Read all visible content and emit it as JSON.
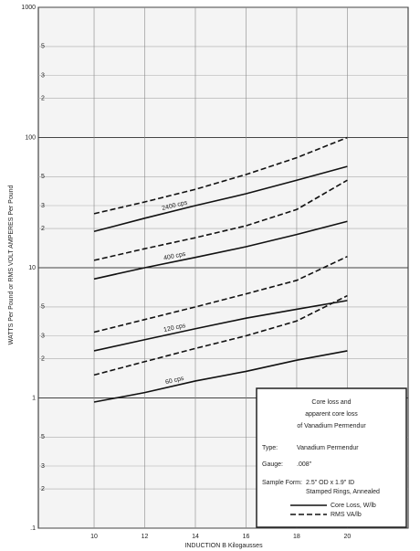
{
  "chart_data": {
    "type": "line",
    "log_y": true,
    "grid": true,
    "y_label": "WATTS Per Pound or RMS VOLT AMPERES Per Pound",
    "x_label": "INDUCTION  B  Kilogausses",
    "x": [
      10,
      12,
      14,
      16,
      18,
      20
    ],
    "xlim": [
      7.8,
      22.4
    ],
    "xticks": [
      10,
      12,
      14,
      16,
      18,
      20
    ],
    "ylim": [
      0.1,
      1000
    ],
    "yticks": [
      {
        "value": 0.1,
        "label": ".1"
      },
      1,
      10,
      100,
      1000
    ],
    "minor_yticks": [
      {
        "value": 0.2,
        "label": "2"
      },
      {
        "value": 0.3,
        "label": "3"
      },
      {
        "value": 0.5,
        "label": "5"
      },
      {
        "value": 2,
        "label": "2"
      },
      {
        "value": 3,
        "label": "3"
      },
      {
        "value": 5,
        "label": "5"
      },
      {
        "value": 20,
        "label": "2"
      },
      {
        "value": 30,
        "label": "3"
      },
      {
        "value": 50,
        "label": "5"
      },
      {
        "value": 200,
        "label": "2"
      },
      {
        "value": 300,
        "label": "3"
      },
      {
        "value": 500,
        "label": "5"
      }
    ],
    "series": [
      {
        "name": "RMS VA/lb",
        "dashed": true,
        "color": "#111",
        "values": [
          26,
          32,
          40,
          52,
          70,
          100
        ]
      },
      {
        "name": "Core Loss, W/lb",
        "dashed": false,
        "color": "#111",
        "curve_label": "2400 cps",
        "values": [
          19,
          24,
          30,
          37,
          47,
          60
        ]
      },
      {
        "name": "RMS VA/lb",
        "dashed": true,
        "color": "#111",
        "values": [
          11.4,
          14,
          17,
          21,
          28,
          47
        ]
      },
      {
        "name": "Core Loss, W/lb",
        "dashed": false,
        "color": "#111",
        "curve_label": "400 cps",
        "values": [
          8.2,
          10,
          12,
          14.5,
          18,
          22.7
        ]
      },
      {
        "name": "RMS VA/lb",
        "dashed": true,
        "color": "#111",
        "values": [
          3.2,
          4,
          5,
          6.3,
          8,
          12.2
        ]
      },
      {
        "name": "Core Loss, W/lb",
        "dashed": false,
        "color": "#111",
        "curve_label": "120 cps",
        "values": [
          2.3,
          2.8,
          3.4,
          4.1,
          4.8,
          5.6
        ]
      },
      {
        "name": "RMS VA/lb",
        "dashed": true,
        "color": "#111",
        "values": [
          1.5,
          1.9,
          2.4,
          3.0,
          3.9,
          6.1
        ]
      },
      {
        "name": "Core Loss, W/lb",
        "dashed": false,
        "color": "#111",
        "curve_label": "60 cps",
        "values": [
          0.93,
          1.1,
          1.35,
          1.6,
          1.95,
          2.3
        ]
      }
    ],
    "box": {
      "title_lines": [
        "Core loss and",
        "apparent core loss",
        "of  Vanadium Permendur"
      ],
      "rows": [
        [
          "Type:",
          "Vanadium Permendur"
        ],
        [
          "Gauge:",
          ".008\""
        ],
        [
          "Sample Form:",
          "2.5\" OD x 1.9\" ID"
        ],
        [
          "",
          "Stamped Rings, Annealed"
        ]
      ]
    }
  }
}
